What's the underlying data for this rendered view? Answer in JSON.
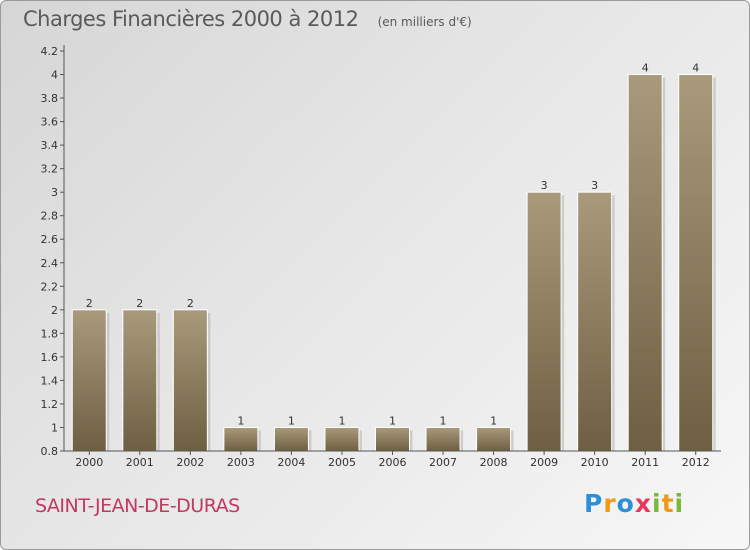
{
  "chart_data": {
    "type": "bar",
    "title": "Charges Financières 2000 à 2012",
    "subtitle": "(en milliers d'€)",
    "categories": [
      "2000",
      "2001",
      "2002",
      "2003",
      "2004",
      "2005",
      "2006",
      "2007",
      "2008",
      "2009",
      "2010",
      "2011",
      "2012"
    ],
    "values": [
      2,
      2,
      2,
      1,
      1,
      1,
      1,
      1,
      1,
      3,
      3,
      4,
      4
    ],
    "data_labels": [
      "2",
      "2",
      "2",
      "1",
      "1",
      "1",
      "1",
      "1",
      "1",
      "3",
      "3",
      "4",
      "4"
    ],
    "ylim": [
      0.8,
      4.2
    ],
    "yticks": [
      0.8,
      1,
      1.2,
      1.4,
      1.6,
      1.8,
      2,
      2.2,
      2.4,
      2.6,
      2.8,
      3,
      3.2,
      3.4,
      3.6,
      3.8,
      4,
      4.2
    ],
    "ytick_labels": [
      "0.8",
      "1",
      "1.2",
      "1.4",
      "1.6",
      "1.8",
      "2",
      "2.2",
      "2.4",
      "2.6",
      "2.8",
      "3",
      "3.2",
      "3.4",
      "3.6",
      "3.8",
      "4",
      "4.2"
    ],
    "xlabel": "",
    "ylabel": "",
    "grid": false,
    "bar_color_top": "#a99a7c",
    "bar_color_bottom": "#6f5f42"
  },
  "footer": {
    "commune": "SAINT-JEAN-DE-DURAS",
    "commune_color": "#c0395f"
  },
  "brand": {
    "letters": [
      "P",
      "r",
      "o",
      "x",
      "i",
      "t",
      "i"
    ],
    "colors": [
      "#2f8fd6",
      "#f09a1c",
      "#2f8fd6",
      "#e8365c",
      "#7ab83a",
      "#f09a1c",
      "#7ab83a"
    ]
  }
}
